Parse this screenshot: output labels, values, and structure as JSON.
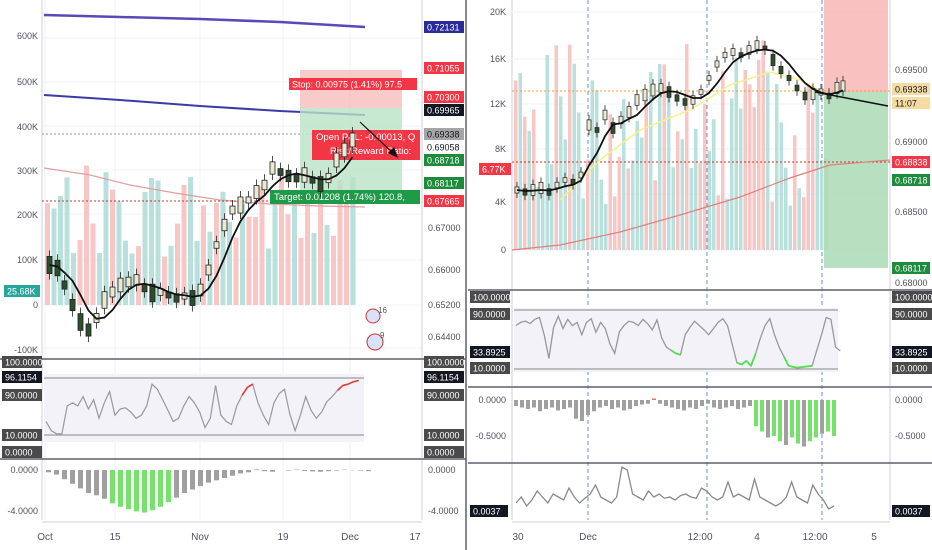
{
  "chart_data": [
    {
      "panel": "left",
      "type": "candlestick",
      "price_axis": {
        "ticks": [
          "0.72131",
          "0.71055",
          "0.70300",
          "0.69965",
          "0.69338",
          "0.69058",
          "0.68718",
          "0.68117",
          "0.67665",
          "0.67000",
          "0.66000",
          "0.65200",
          "0.64400"
        ],
        "highlight_labels": [
          {
            "text": "0.72131",
            "color": "#2a2a9a"
          },
          {
            "text": "0.71055",
            "color": "#f23645"
          },
          {
            "text": "0.70300",
            "color": "#f23645"
          },
          {
            "text": "0.69965",
            "color": "#131722"
          },
          {
            "text": "0.69338",
            "color": "#a5a5a5"
          },
          {
            "text": "0.69058",
            "color": "#ffffff"
          },
          {
            "text": "0.68718",
            "color": "#1e8a3c"
          },
          {
            "text": "0.68117",
            "color": "#1e8a3c"
          },
          {
            "text": "0.67665",
            "color": "#f23645"
          }
        ]
      },
      "volume_axis": {
        "ticks": [
          "600K",
          "500K",
          "400K",
          "300K",
          "200K",
          "100K",
          "0",
          "-100K"
        ],
        "current": "25.68K"
      },
      "x_axis": {
        "ticks": [
          "Oct",
          "15",
          "Nov",
          "19",
          "Dec",
          "17"
        ]
      },
      "position_tool": {
        "stop": "Stop: 0.00975 (1.41%) 97.5",
        "open": "Open P&L: -0.00013, Q",
        "risk_reward": "Risk/Reward Ratio:",
        "target": "Target: 0.01208 (1.74%) 120.8,"
      },
      "event_badges": [
        "16",
        "9"
      ],
      "oscillator": {
        "ticks": [
          "100.0000",
          "90.0000",
          "10.0000",
          "0.0000"
        ],
        "current": "96.1154",
        "values": [
          30,
          15,
          10,
          10,
          55,
          60,
          55,
          70,
          50,
          65,
          35,
          60,
          78,
          40,
          50,
          52,
          45,
          35,
          40,
          55,
          90,
          82,
          65,
          48,
          30,
          35,
          55,
          70,
          60,
          45,
          20,
          35,
          88,
          40,
          30,
          25,
          55,
          72,
          85,
          90,
          60,
          40,
          25,
          60,
          75,
          82,
          42,
          15,
          40,
          70,
          48,
          35,
          45,
          62,
          70,
          80,
          88,
          90,
          94,
          96
        ]
      },
      "histogram": {
        "ticks": [
          "0.0000",
          "-4.0000"
        ],
        "values": [
          -0.2,
          -0.4,
          -0.8,
          -1.2,
          -1.6,
          -2.0,
          -2.2,
          -2.5,
          -2.9,
          -3.2,
          -3.4,
          -3.6,
          -3.7,
          -3.5,
          -3.2,
          -2.8,
          -2.4,
          -2.0,
          -1.7,
          -1.4,
          -1.1,
          -0.9,
          -0.7,
          -0.5,
          -0.3,
          -0.2,
          0.05,
          -0.1,
          -0.15,
          0.0,
          -0.05,
          0.04,
          -0.08,
          -0.12,
          -0.15,
          -0.1,
          -0.05,
          0.03,
          -0.02,
          -0.05,
          -0.1
        ]
      }
    },
    {
      "panel": "right",
      "type": "candlestick",
      "price_axis": {
        "ticks": [
          "0.69500",
          "0.69000",
          "0.68500",
          "0.68000"
        ],
        "highlight_labels": [
          {
            "text": "0.69338",
            "color": "#f5dca2"
          },
          {
            "text": "11:07",
            "color": "#f5dca2"
          },
          {
            "text": "0.68838",
            "color": "#f23645"
          },
          {
            "text": "0.68718",
            "color": "#1e8a3c"
          },
          {
            "text": "0.68117",
            "color": "#1e8a3c"
          }
        ]
      },
      "volume_axis": {
        "ticks": [
          "20K",
          "16K",
          "12K",
          "8K",
          "4K",
          "0"
        ],
        "current": "6.77K"
      },
      "x_axis": {
        "ticks": [
          "30",
          "Dec",
          "12:00",
          "4",
          "12:00",
          "5"
        ]
      },
      "oscillator": {
        "ticks": [
          "100.0000",
          "90.0000",
          "10.0000"
        ],
        "current": "33.8925",
        "values": [
          75,
          80,
          82,
          78,
          85,
          88,
          60,
          22,
          72,
          90,
          70,
          85,
          75,
          80,
          60,
          80,
          86,
          64,
          80,
          70,
          45,
          30,
          65,
          75,
          82,
          80,
          75,
          85,
          78,
          68,
          84,
          55,
          40,
          35,
          30,
          28,
          60,
          72,
          82,
          75,
          68,
          60,
          70,
          80,
          86,
          75,
          45,
          15,
          12,
          18,
          10,
          30,
          55,
          75,
          86,
          60,
          40,
          25,
          10,
          8,
          7,
          8,
          9,
          10,
          35,
          60,
          88,
          85,
          40,
          34
        ]
      },
      "histogram": {
        "ticks": [
          "0.0000",
          "-0.5000"
        ],
        "current": "-0.5000",
        "values": [
          -0.08,
          -0.1,
          -0.12,
          -0.1,
          -0.15,
          -0.12,
          -0.1,
          -0.14,
          -0.12,
          -0.1,
          -0.25,
          -0.28,
          -0.2,
          -0.15,
          -0.1,
          -0.08,
          -0.12,
          -0.1,
          -0.14,
          -0.12,
          -0.08,
          -0.06,
          -0.05,
          0.02,
          -0.05,
          -0.08,
          -0.1,
          -0.12,
          -0.14,
          -0.1,
          -0.12,
          -0.08,
          -0.05,
          -0.1,
          -0.12,
          -0.1,
          -0.08,
          -0.12,
          -0.1,
          -0.08,
          -0.35,
          -0.42,
          -0.5,
          -0.48,
          -0.55,
          -0.6,
          -0.5,
          -0.58,
          -0.62,
          -0.55,
          -0.5,
          -0.45,
          -0.42,
          -0.48
        ]
      },
      "third": {
        "current": "0.0037",
        "values": [
          0.2,
          0.3,
          0.15,
          0.25,
          0.4,
          0.3,
          0.2,
          0.35,
          0.3,
          0.25,
          0.45,
          0.3,
          0.2,
          0.28,
          0.35,
          0.5,
          0.3,
          0.25,
          0.2,
          0.3,
          0.8,
          0.75,
          0.35,
          0.3,
          0.25,
          0.4,
          0.3,
          0.35,
          0.28,
          0.3,
          0.25,
          0.32,
          0.35,
          0.3,
          0.28,
          0.45,
          0.4,
          0.3,
          0.25,
          0.3,
          0.55,
          0.3,
          0.35,
          0.3,
          0.25,
          0.6,
          0.3,
          0.25,
          0.2,
          0.15,
          0.2,
          0.3,
          0.55,
          0.3,
          0.25,
          0.2,
          0.5,
          0.35,
          0.25,
          0.1,
          0.15
        ]
      }
    }
  ]
}
